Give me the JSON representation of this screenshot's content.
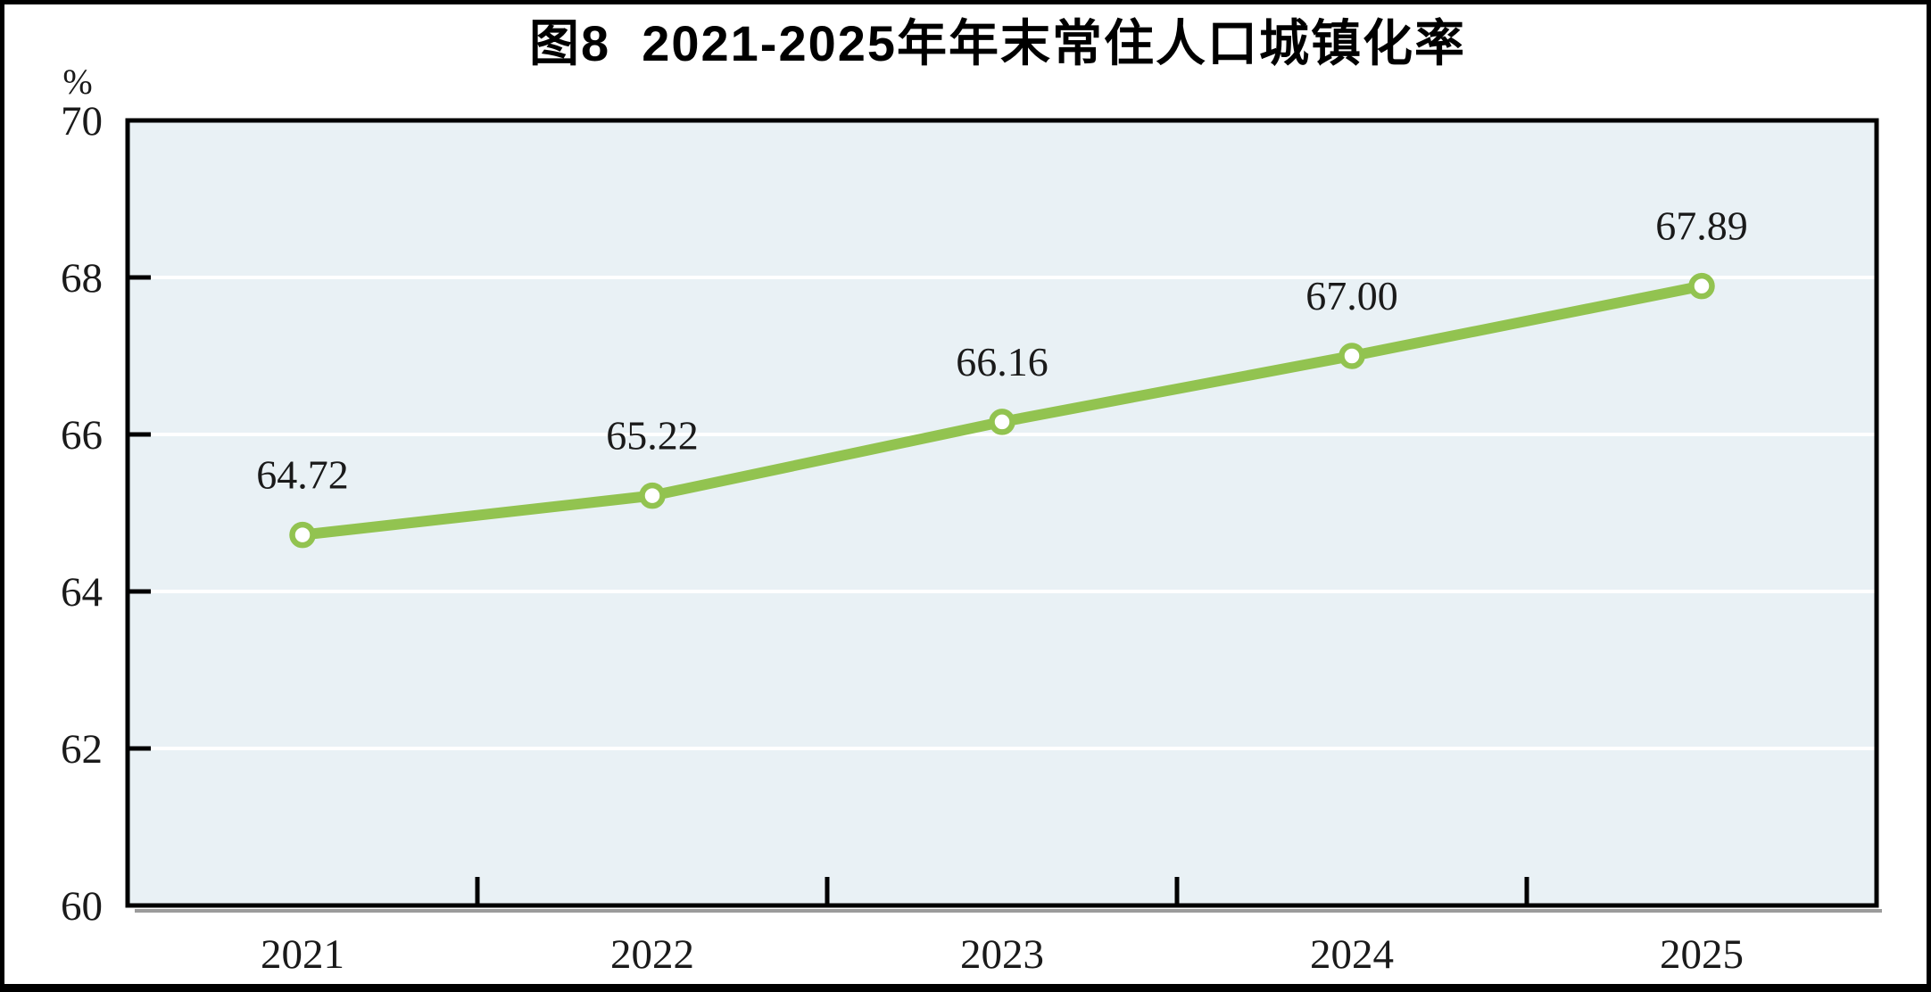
{
  "figure": {
    "title": "图8  2021-2025年年末常住人口城镇化率"
  },
  "chart_data": {
    "type": "line",
    "title": "图8  2021-2025年年末常住人口城镇化率",
    "unit_label": "%",
    "categories": [
      "2021",
      "2022",
      "2023",
      "2024",
      "2025"
    ],
    "series": [
      {
        "values": [
          64.72,
          65.22,
          66.16,
          67.0,
          67.89
        ]
      }
    ],
    "data_labels": [
      "64.72",
      "65.22",
      "66.16",
      "67.00",
      "67.89"
    ],
    "ylabel": "%",
    "xlabel": "",
    "ylim": [
      60,
      70
    ],
    "y_ticks": [
      60,
      62,
      64,
      66,
      68,
      70
    ],
    "grid": true,
    "legend": "none",
    "colors": {
      "line": "#92c350",
      "marker_fill": "#ffffff",
      "plot_background": "#e9f1f5",
      "gridline": "#ffffff",
      "axis": "#000000",
      "axis_shadow": "#9b9b9b",
      "text": "#1a1a1a"
    }
  }
}
